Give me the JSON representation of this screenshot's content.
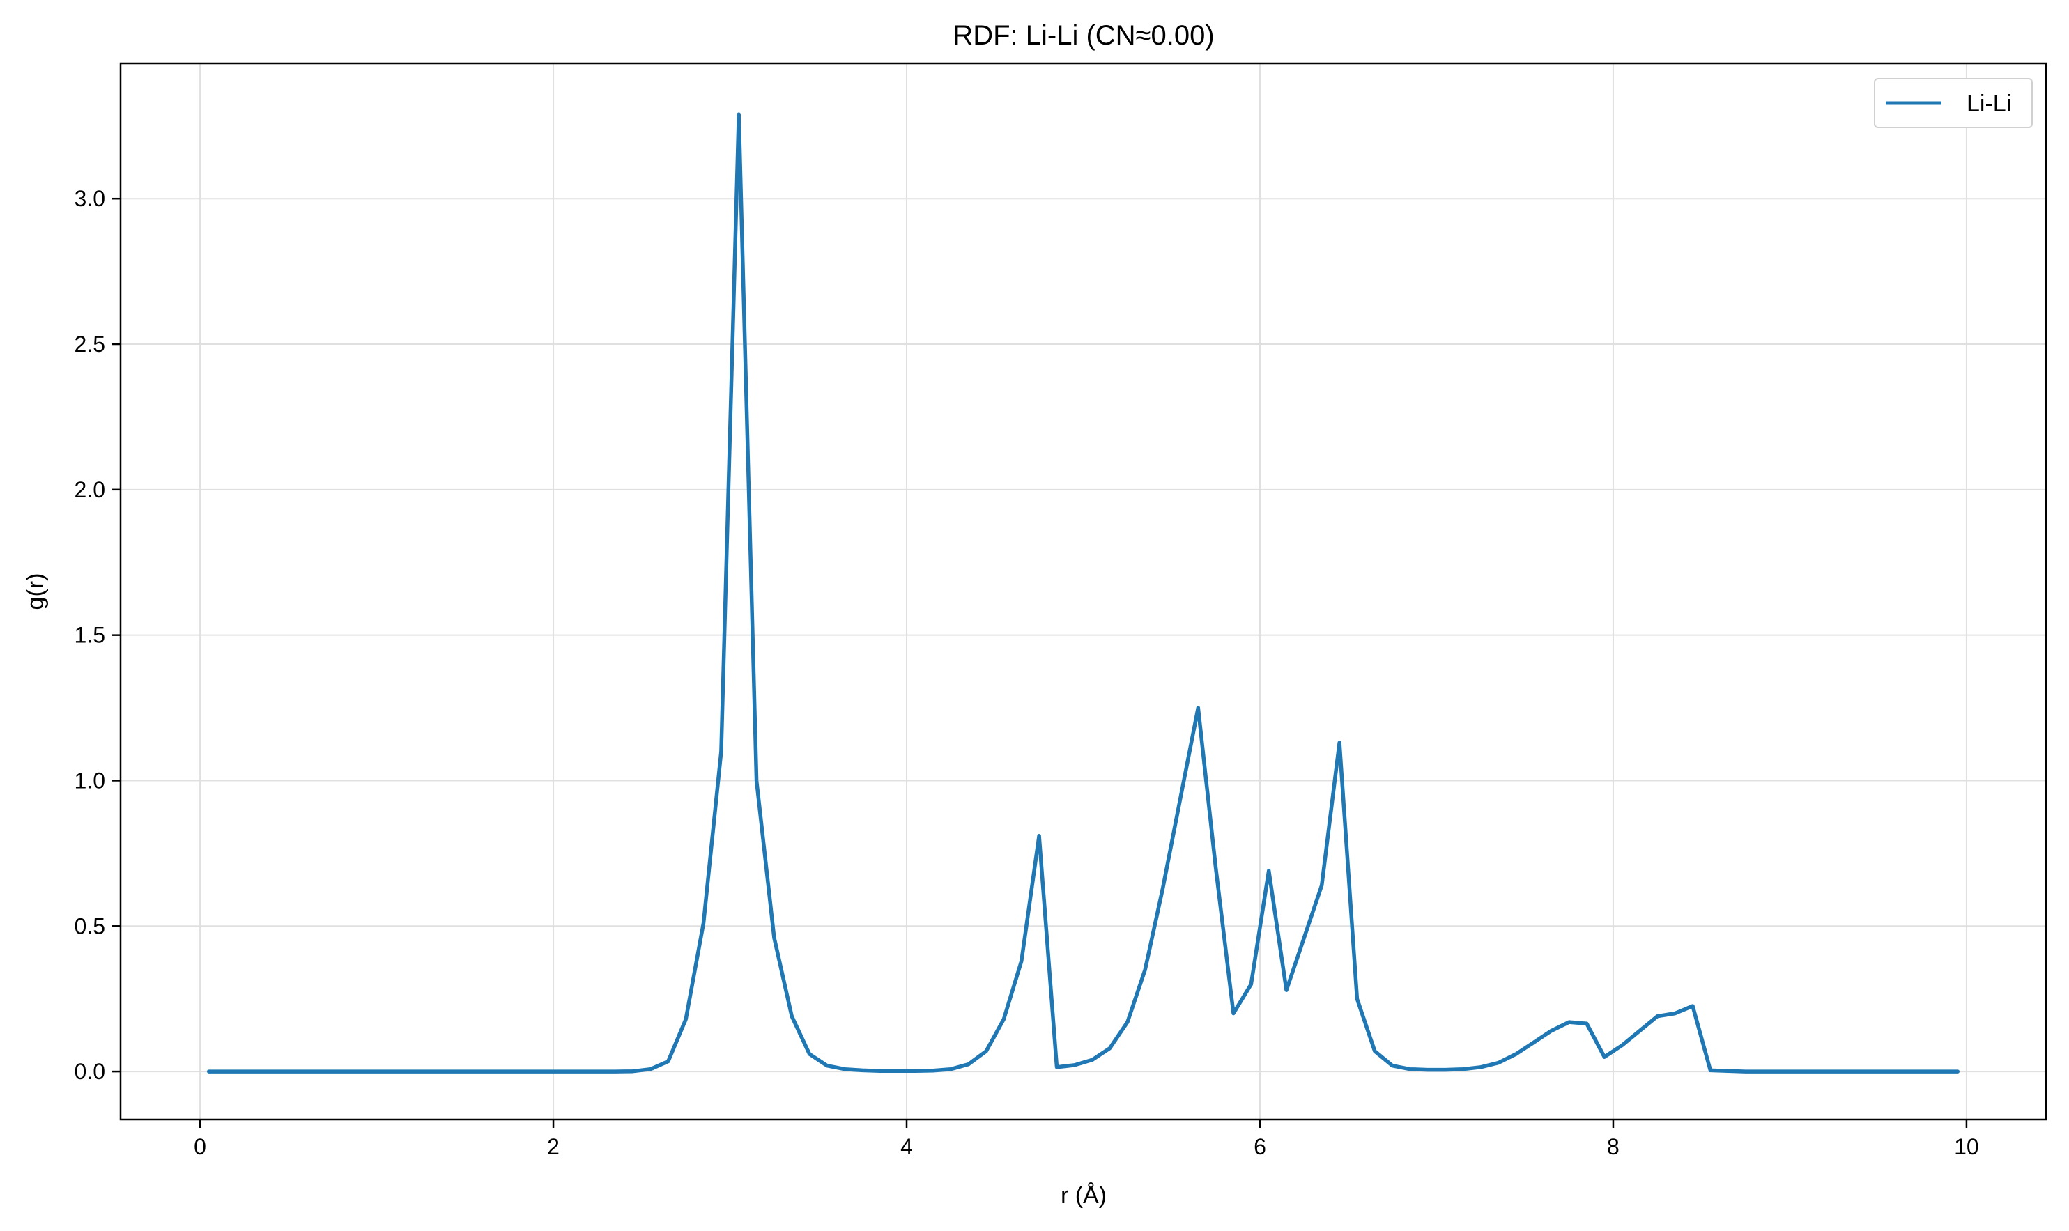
{
  "chart_data": {
    "type": "line",
    "title": "RDF: Li-Li (CN≈0.00)",
    "xlabel": "r (Å)",
    "ylabel": "g(r)",
    "xlim": [
      -0.45,
      10.45
    ],
    "ylim": [
      -0.165,
      3.465
    ],
    "xticks": [
      0,
      2,
      4,
      6,
      8,
      10
    ],
    "xtick_labels": [
      "0",
      "2",
      "4",
      "6",
      "8",
      "10"
    ],
    "yticks": [
      0.0,
      0.5,
      1.0,
      1.5,
      2.0,
      2.5,
      3.0
    ],
    "ytick_labels": [
      "0.0",
      "0.5",
      "1.0",
      "1.5",
      "2.0",
      "2.5",
      "3.0"
    ],
    "grid": true,
    "legend_position": "top-right",
    "colors": {
      "series": "#1f77b4",
      "grid": "#e0e0e0",
      "axes": "#000000"
    },
    "series": [
      {
        "name": "Li-Li",
        "x": [
          0.05,
          0.15,
          0.25,
          0.35,
          0.45,
          0.55,
          0.65,
          0.75,
          0.85,
          0.95,
          1.05,
          1.15,
          1.25,
          1.35,
          1.45,
          1.55,
          1.65,
          1.75,
          1.85,
          1.95,
          2.05,
          2.15,
          2.25,
          2.35,
          2.45,
          2.55,
          2.65,
          2.75,
          2.85,
          2.95,
          3.05,
          3.15,
          3.25,
          3.35,
          3.45,
          3.55,
          3.65,
          3.75,
          3.85,
          3.95,
          4.05,
          4.15,
          4.25,
          4.35,
          4.45,
          4.55,
          4.65,
          4.75,
          4.85,
          4.95,
          5.05,
          5.15,
          5.25,
          5.35,
          5.45,
          5.55,
          5.65,
          5.75,
          5.85,
          5.95,
          6.05,
          6.15,
          6.25,
          6.35,
          6.45,
          6.55,
          6.65,
          6.75,
          6.85,
          6.95,
          7.05,
          7.15,
          7.25,
          7.35,
          7.45,
          7.55,
          7.65,
          7.75,
          7.85,
          7.95,
          8.05,
          8.15,
          8.25,
          8.35,
          8.45,
          8.55,
          8.65,
          8.75,
          8.85,
          8.95,
          9.05,
          9.15,
          9.25,
          9.35,
          9.45,
          9.55,
          9.65,
          9.75,
          9.85,
          9.95
        ],
        "values": [
          0,
          0,
          0,
          0,
          0,
          0,
          0,
          0,
          0,
          0,
          0,
          0,
          0,
          0,
          0,
          0,
          0,
          0,
          0,
          0,
          0,
          0,
          0,
          0,
          0.001,
          0.008,
          0.035,
          0.18,
          0.51,
          1.1,
          3.29,
          1.0,
          0.46,
          0.19,
          0.06,
          0.02,
          0.008,
          0.004,
          0.002,
          0.002,
          0.002,
          0.003,
          0.008,
          0.025,
          0.07,
          0.18,
          0.38,
          0.81,
          0.015,
          0.022,
          0.04,
          0.08,
          0.17,
          0.35,
          0.63,
          0.94,
          1.25,
          0.7,
          0.2,
          0.3,
          0.69,
          0.28,
          0.46,
          0.64,
          1.13,
          0.25,
          0.07,
          0.02,
          0.008,
          0.006,
          0.006,
          0.008,
          0.015,
          0.03,
          0.06,
          0.1,
          0.14,
          0.17,
          0.165,
          0.05,
          0.09,
          0.14,
          0.19,
          0.2,
          0.225,
          0.004,
          0.002,
          0,
          0,
          0,
          0,
          0,
          0,
          0,
          0,
          0,
          0,
          0,
          0,
          0
        ]
      }
    ]
  }
}
